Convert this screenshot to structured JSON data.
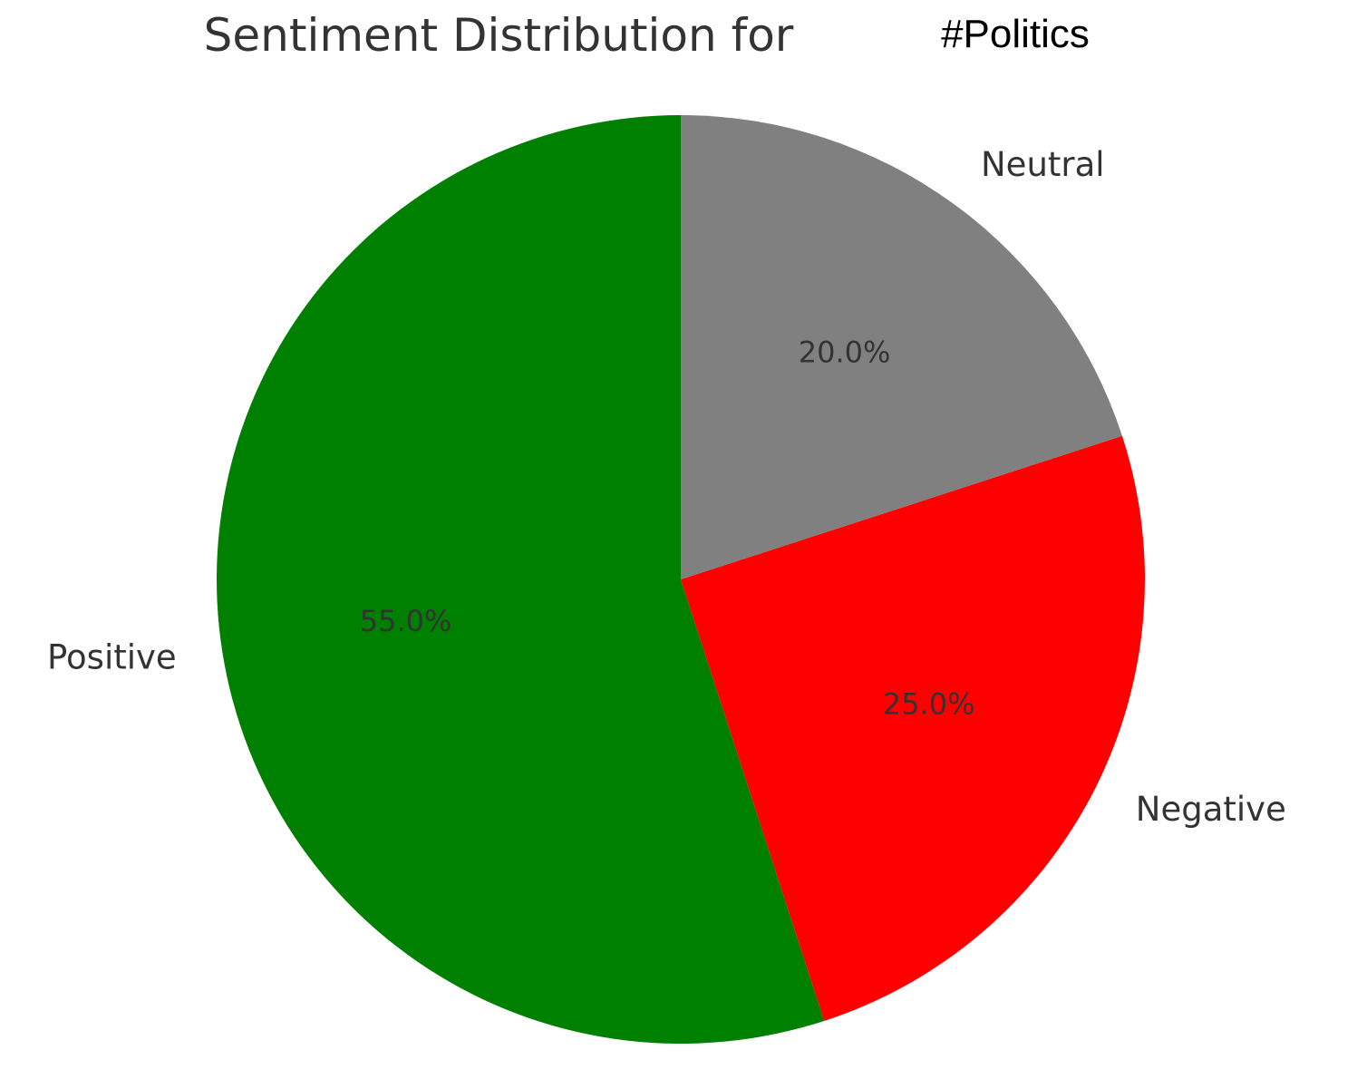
{
  "chart_data": {
    "type": "pie",
    "title": "Sentiment Distribution for",
    "title_tag": "#Politics",
    "categories": [
      "Positive",
      "Negative",
      "Neutral"
    ],
    "values": [
      55.0,
      25.0,
      20.0
    ],
    "value_labels": [
      "55.0%",
      "25.0%",
      "20.0%"
    ],
    "colors": [
      "#008000",
      "#ff0000",
      "#808080"
    ],
    "start_angle_deg": 90,
    "direction": "counterclockwise",
    "legend": "none"
  }
}
